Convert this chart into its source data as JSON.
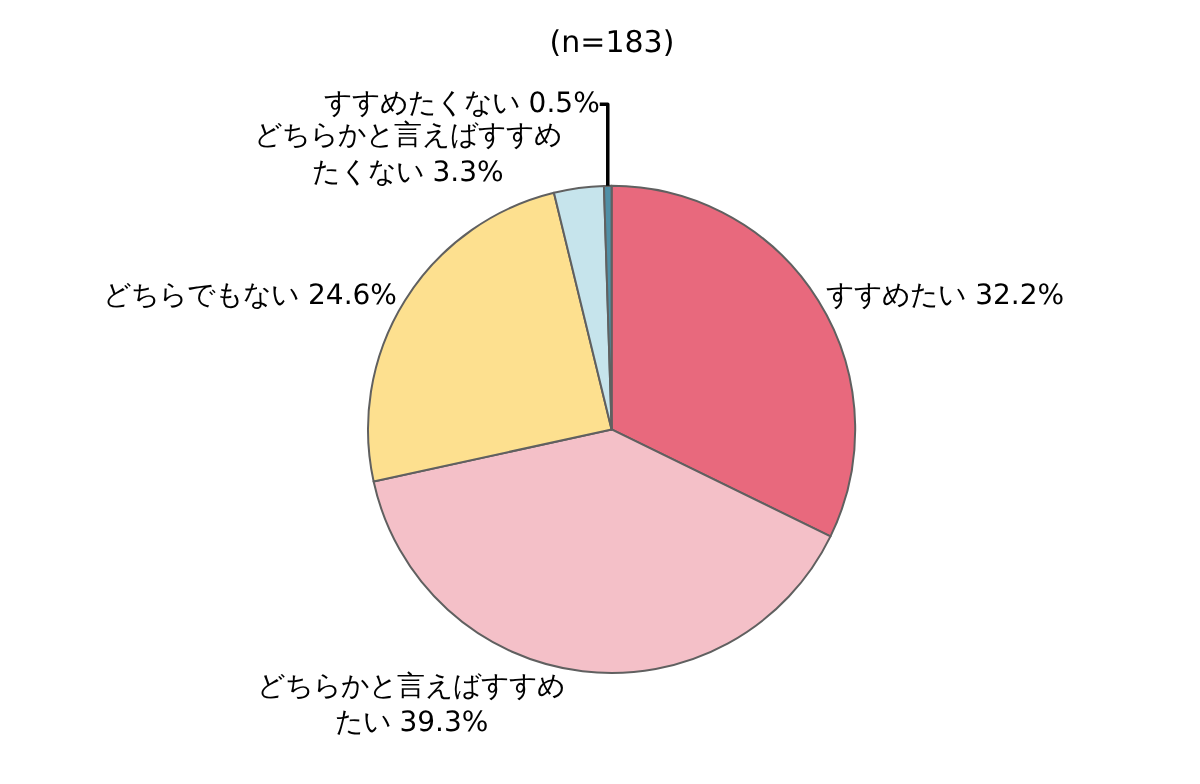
{
  "chart_data": {
    "type": "pie",
    "title": "(n=183)",
    "categories": [
      "すすめたい",
      "どちらかと言えばすすめたい",
      "どちらでもない",
      "どちらかと言えばすすめたくない",
      "すすめたくない"
    ],
    "values": [
      32.2,
      39.3,
      24.6,
      3.3,
      0.5
    ],
    "value_labels": [
      "32.2%",
      "39.3%",
      "24.6%",
      "3.3%",
      "0.5%"
    ],
    "colors": [
      "#e8697d",
      "#f4c0c8",
      "#fde08f",
      "#c6e4ec",
      "#4f8fa6"
    ],
    "legend": false
  }
}
